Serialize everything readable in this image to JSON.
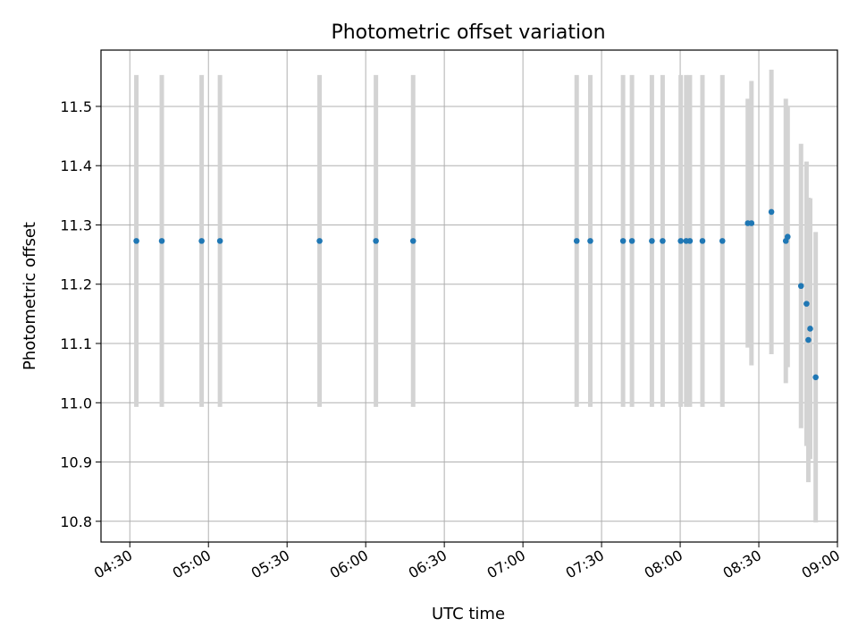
{
  "chart_data": {
    "type": "scatter",
    "title": "Photometric offset variation",
    "xlabel": "UTC time",
    "ylabel": "Photometric offset",
    "x_ticks": [
      "04:30",
      "05:00",
      "05:30",
      "06:00",
      "06:30",
      "07:00",
      "07:30",
      "08:00",
      "08:30",
      "09:00"
    ],
    "x_tick_minutes": [
      270,
      300,
      330,
      360,
      390,
      420,
      450,
      480,
      510,
      540
    ],
    "y_ticks": [
      "10.8",
      "10.9",
      "11.0",
      "11.1",
      "11.2",
      "11.3",
      "11.4",
      "11.5"
    ],
    "xlim_minutes": [
      259,
      540
    ],
    "ylim": [
      10.765,
      11.595
    ],
    "grid": true,
    "marker_color": "#1f77b4",
    "errorbar_color": "#d3d3d3",
    "points": [
      {
        "t": 272.5,
        "y": 11.273,
        "err": 0.28
      },
      {
        "t": 282.2,
        "y": 11.273,
        "err": 0.28
      },
      {
        "t": 297.4,
        "y": 11.273,
        "err": 0.28
      },
      {
        "t": 304.4,
        "y": 11.273,
        "err": 0.28
      },
      {
        "t": 342.4,
        "y": 11.273,
        "err": 0.28
      },
      {
        "t": 363.9,
        "y": 11.273,
        "err": 0.28
      },
      {
        "t": 378.1,
        "y": 11.273,
        "err": 0.28
      },
      {
        "t": 440.5,
        "y": 11.273,
        "err": 0.28
      },
      {
        "t": 445.7,
        "y": 11.273,
        "err": 0.28
      },
      {
        "t": 458.2,
        "y": 11.273,
        "err": 0.28
      },
      {
        "t": 461.6,
        "y": 11.273,
        "err": 0.28
      },
      {
        "t": 469.2,
        "y": 11.273,
        "err": 0.28
      },
      {
        "t": 473.3,
        "y": 11.273,
        "err": 0.28
      },
      {
        "t": 480.2,
        "y": 11.273,
        "err": 0.28
      },
      {
        "t": 482.3,
        "y": 11.273,
        "err": 0.28
      },
      {
        "t": 483.7,
        "y": 11.273,
        "err": 0.28
      },
      {
        "t": 488.5,
        "y": 11.273,
        "err": 0.28
      },
      {
        "t": 496.1,
        "y": 11.273,
        "err": 0.28
      },
      {
        "t": 505.8,
        "y": 11.303,
        "err": 0.21
      },
      {
        "t": 507.2,
        "y": 11.303,
        "err": 0.24
      },
      {
        "t": 514.8,
        "y": 11.322,
        "err": 0.24
      },
      {
        "t": 520.3,
        "y": 11.273,
        "err": 0.24
      },
      {
        "t": 521.0,
        "y": 11.28,
        "err": 0.22
      },
      {
        "t": 526.1,
        "y": 11.197,
        "err": 0.24
      },
      {
        "t": 528.2,
        "y": 11.167,
        "err": 0.24
      },
      {
        "t": 528.9,
        "y": 11.106,
        "err": 0.24
      },
      {
        "t": 529.6,
        "y": 11.125,
        "err": 0.22
      },
      {
        "t": 531.7,
        "y": 11.043,
        "err": 0.245
      }
    ]
  }
}
